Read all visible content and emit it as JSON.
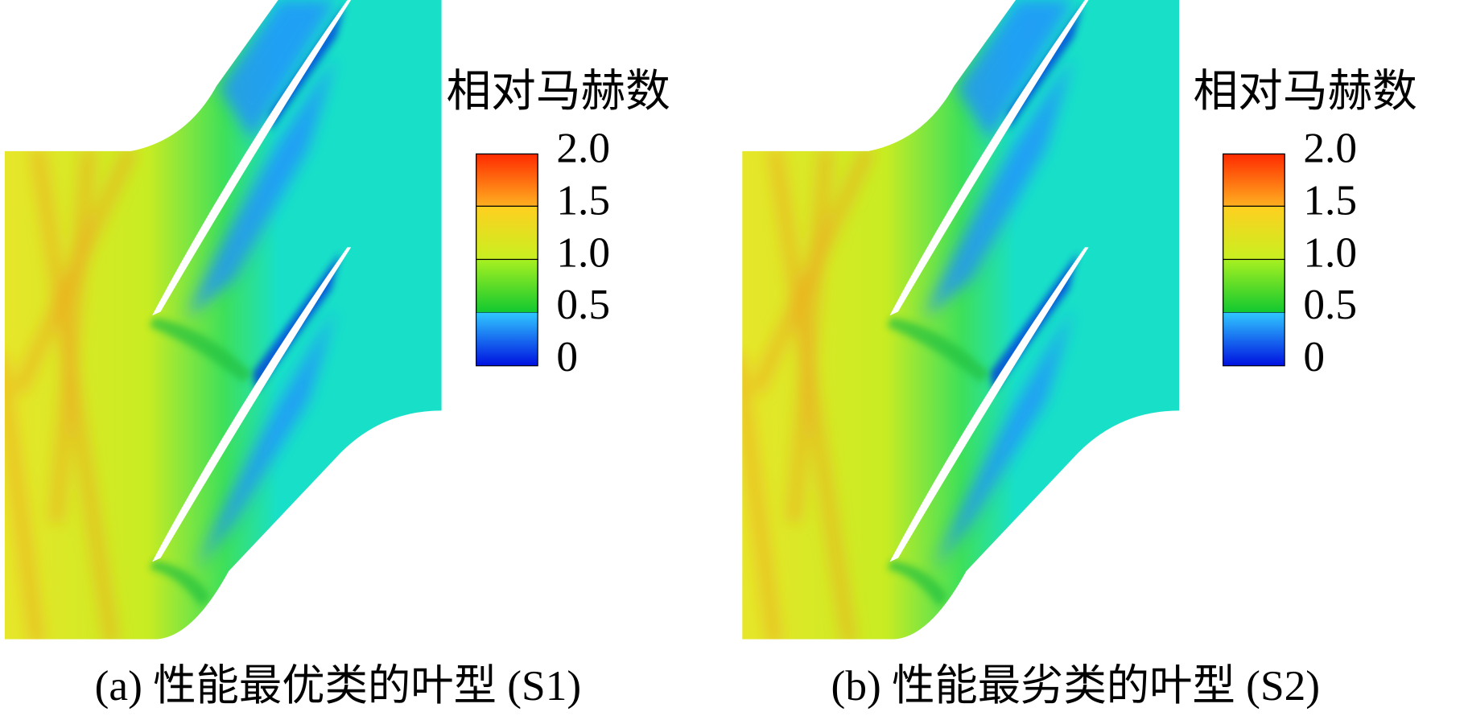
{
  "panels": [
    {
      "legend": {
        "title": "相对马赫数",
        "ticks": [
          "2.0",
          "1.5",
          "1.0",
          "0.5",
          "0"
        ]
      },
      "caption": "(a) 性能最优类的叶型 (S1)"
    },
    {
      "legend": {
        "title": "相对马赫数",
        "ticks": [
          "2.0",
          "1.5",
          "1.0",
          "0.5",
          "0"
        ]
      },
      "caption": "(b) 性能最劣类的叶型 (S2)"
    }
  ]
}
